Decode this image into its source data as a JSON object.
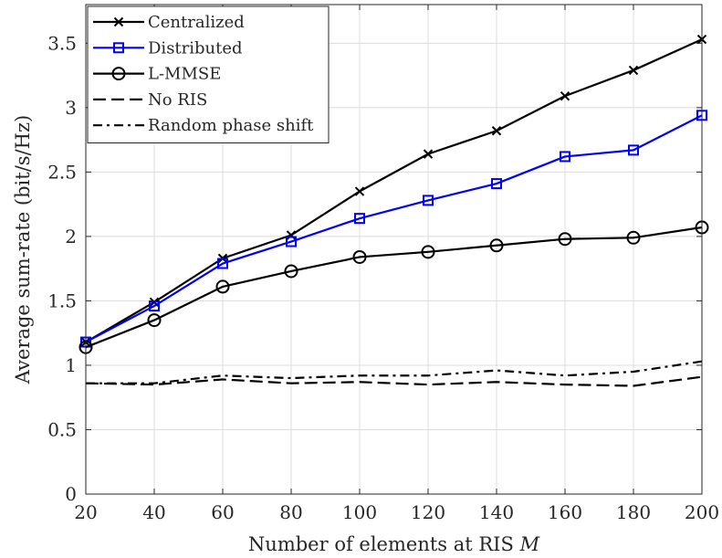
{
  "chart_data": {
    "type": "line",
    "title": "",
    "xlabel": "Number of elements at RIS",
    "xlabel_symbol": "M",
    "ylabel": "Average sum-rate (bit/s/Hz)",
    "xlim": [
      20,
      200
    ],
    "ylim": [
      0,
      3.8
    ],
    "xticks": [
      20,
      40,
      60,
      80,
      100,
      120,
      140,
      160,
      180,
      200
    ],
    "yticks": [
      0,
      0.5,
      1,
      1.5,
      2,
      2.5,
      3,
      3.5
    ],
    "ytick_labels": [
      "0",
      "0.5",
      "1",
      "1.5",
      "2",
      "2.5",
      "3",
      "3.5"
    ],
    "grid": true,
    "legend_position": "top-left",
    "x": [
      20,
      40,
      60,
      80,
      100,
      120,
      140,
      160,
      180,
      200
    ],
    "series": [
      {
        "name": "Centralized",
        "color": "#000000",
        "dash": "solid",
        "marker": "x",
        "values": [
          1.18,
          1.49,
          1.83,
          2.01,
          2.35,
          2.64,
          2.82,
          3.09,
          3.29,
          3.53
        ]
      },
      {
        "name": "Distributed",
        "color": "#0000ff",
        "dash": "solid",
        "marker": "square",
        "values": [
          1.18,
          1.46,
          1.79,
          1.96,
          2.14,
          2.28,
          2.41,
          2.62,
          2.67,
          2.94
        ]
      },
      {
        "name": "L-MMSE",
        "color": "#000000",
        "dash": "solid",
        "marker": "circle",
        "values": [
          1.14,
          1.35,
          1.61,
          1.73,
          1.84,
          1.88,
          1.93,
          1.98,
          1.99,
          2.07
        ]
      },
      {
        "name": "No RIS",
        "color": "#000000",
        "dash": "dashed",
        "marker": "none",
        "values": [
          0.86,
          0.85,
          0.89,
          0.86,
          0.87,
          0.85,
          0.87,
          0.85,
          0.84,
          0.91
        ]
      },
      {
        "name": "Random phase shift",
        "color": "#000000",
        "dash": "dashdot",
        "marker": "none",
        "values": [
          0.86,
          0.86,
          0.92,
          0.9,
          0.92,
          0.92,
          0.96,
          0.92,
          0.95,
          1.03
        ]
      }
    ]
  }
}
